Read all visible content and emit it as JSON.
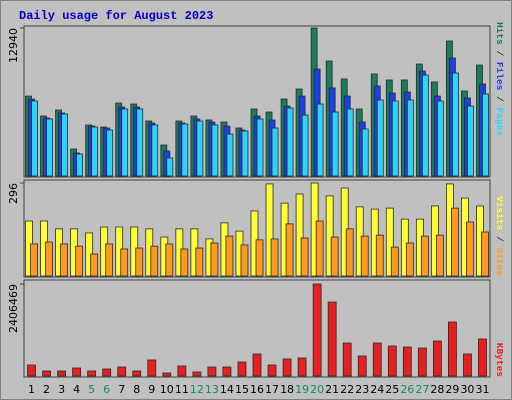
{
  "chart_data": [
    {
      "type": "bar",
      "title": "Daily usage for August 2023",
      "legend_separator": " / ",
      "ylim": [
        0,
        12940
      ],
      "yticks": [
        12940
      ],
      "series": [
        {
          "name": "Hits",
          "color": "#197d5c",
          "values": [
            6990,
            5245,
            5770,
            2360,
            4460,
            4280,
            6380,
            6295,
            4810,
            2710,
            4810,
            5245,
            4895,
            4720,
            4195,
            5860,
            5595,
            6730,
            7605,
            12940,
            10055,
            8480,
            5860,
            8920,
            8395,
            8395,
            9790,
            8220,
            11805,
            7430,
            9705
          ]
        },
        {
          "name": "Files",
          "color": "#1c3fe6",
          "values": [
            6730,
            5070,
            5510,
            2010,
            4370,
            4195,
            6030,
            6030,
            4635,
            2185,
            4635,
            4985,
            4720,
            4370,
            4020,
            5245,
            4895,
            6120,
            6990,
            9355,
            7695,
            6990,
            4720,
            7870,
            7255,
            7345,
            9180,
            6990,
            10315,
            6820,
            8045
          ]
        },
        {
          "name": "Pages",
          "color": "#2ad4ff",
          "values": [
            6555,
            4985,
            5420,
            1925,
            4285,
            4020,
            5860,
            5860,
            4460,
            1575,
            4545,
            4810,
            4460,
            3670,
            3935,
            4985,
            4195,
            5945,
            5330,
            6295,
            5595,
            5860,
            4110,
            6645,
            6555,
            6645,
            8830,
            6555,
            9005,
            6120,
            7170
          ]
        }
      ]
    },
    {
      "type": "bar",
      "legend_separator": " / ",
      "ylim": [
        0,
        296
      ],
      "yticks": [
        296
      ],
      "series": [
        {
          "name": "Visits",
          "color": "#ffff33",
          "values": [
            175,
            175,
            150,
            150,
            137,
            156,
            156,
            156,
            150,
            124,
            150,
            150,
            118,
            169,
            143,
            207,
            293,
            232,
            261,
            296,
            255,
            280,
            220,
            213,
            216,
            181,
            181,
            223,
            293,
            248,
            223
          ]
        },
        {
          "name": "Sites",
          "color": "#ff9922",
          "values": [
            102,
            108,
            102,
            95,
            70,
            102,
            86,
            89,
            95,
            102,
            86,
            89,
            105,
            127,
            99,
            115,
            118,
            166,
            121,
            175,
            124,
            150,
            127,
            130,
            92,
            105,
            127,
            130,
            216,
            172,
            140
          ]
        }
      ]
    },
    {
      "type": "bar",
      "ylim": [
        0,
        2406469
      ],
      "yticks": [
        2406469
      ],
      "series": [
        {
          "name": "KBytes",
          "color": "#e62020",
          "values": [
            287700,
            130800,
            130800,
            209300,
            130800,
            183100,
            235400,
            130800,
            418500,
            78500,
            261600,
            104600,
            235400,
            235400,
            366200,
            575500,
            287700,
            444700,
            470800,
            2406469,
            1935600,
            863200,
            523100,
            863200,
            784700,
            758600,
            732400,
            915500,
            1412500,
            575500,
            967800
          ]
        }
      ],
      "categories": [
        "1",
        "2",
        "3",
        "4",
        "5",
        "6",
        "7",
        "8",
        "9",
        "10",
        "11",
        "12",
        "13",
        "14",
        "15",
        "16",
        "17",
        "18",
        "19",
        "20",
        "21",
        "22",
        "23",
        "24",
        "25",
        "26",
        "27",
        "28",
        "29",
        "30",
        "31"
      ],
      "category_colors": [
        "#000000",
        "#000000",
        "#000000",
        "#000000",
        "#138b6b",
        "#138b6b",
        "#000000",
        "#000000",
        "#000000",
        "#000000",
        "#000000",
        "#138b6b",
        "#138b6b",
        "#000000",
        "#000000",
        "#000000",
        "#000000",
        "#000000",
        "#138b6b",
        "#138b6b",
        "#000000",
        "#000000",
        "#000000",
        "#000000",
        "#000000",
        "#138b6b",
        "#138b6b",
        "#000000",
        "#000000",
        "#000000",
        "#000000"
      ]
    }
  ]
}
